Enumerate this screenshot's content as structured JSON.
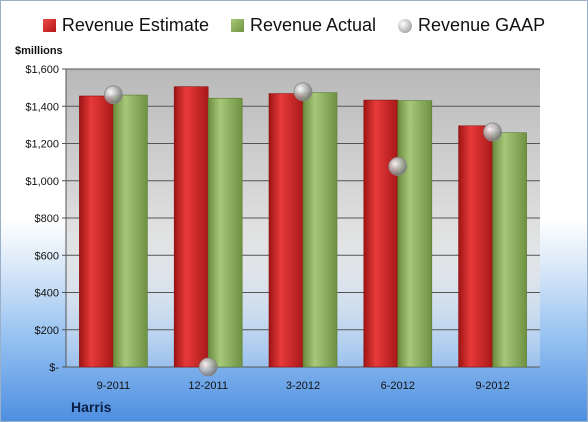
{
  "legend": {
    "estimate": "Revenue Estimate",
    "actual": "Revenue Actual",
    "gaap": "Revenue GAAP"
  },
  "units": "$millions",
  "company": "Harris",
  "colors": {
    "estimate": "#cc2222",
    "actual": "#8fb060",
    "gaap": "#b5b5b5"
  },
  "chart_data": {
    "type": "bar",
    "categories": [
      "9-2011",
      "12-2011",
      "3-2012",
      "6-2012",
      "9-2012"
    ],
    "series": [
      {
        "name": "Revenue Estimate",
        "values": [
          1455,
          1505,
          1468,
          1433,
          1295
        ]
      },
      {
        "name": "Revenue Actual",
        "values": [
          1460,
          1443,
          1473,
          1430,
          1258
        ]
      },
      {
        "name": "Revenue GAAP",
        "type": "scatter",
        "values": [
          1462,
          0,
          1478,
          1077,
          1262
        ]
      }
    ],
    "ylim": [
      0,
      1600
    ],
    "yticks": [
      "$-",
      "$200",
      "$400",
      "$600",
      "$800",
      "$1,000",
      "$1,200",
      "$1,400",
      "$1,600"
    ],
    "ylabel": "$millions",
    "grid": true,
    "legend_position": "top"
  }
}
